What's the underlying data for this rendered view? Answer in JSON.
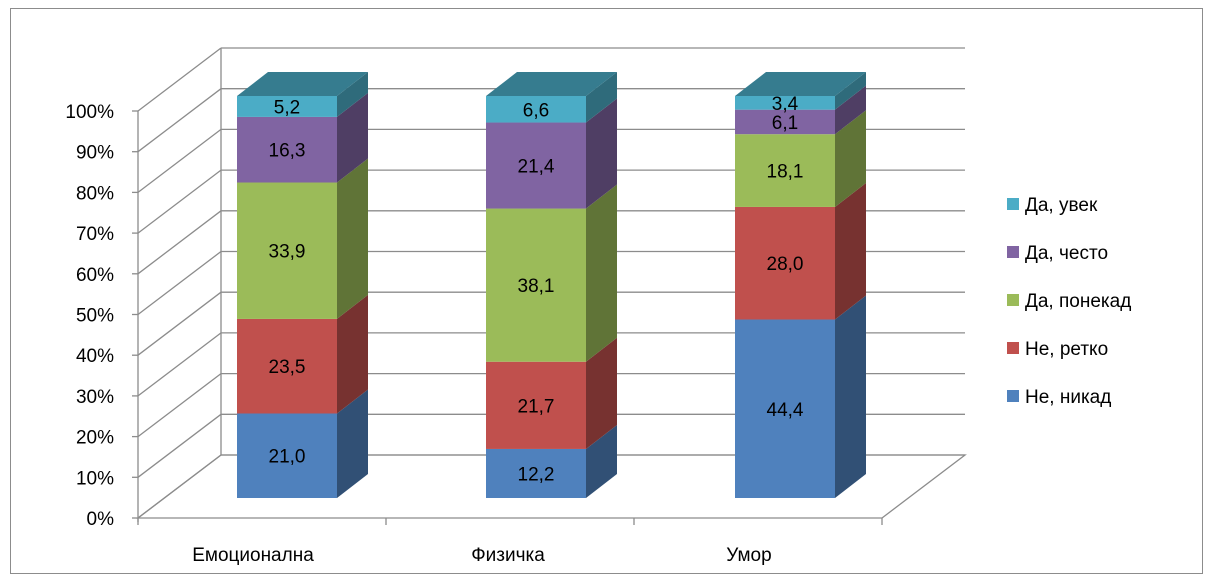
{
  "chart_data": {
    "type": "bar",
    "stacked": true,
    "percent": true,
    "three_d": true,
    "categories": [
      "Емоционална",
      "Физичка",
      "Умор"
    ],
    "series": [
      {
        "name": "Не, никад",
        "values": [
          21.0,
          12.2,
          44.4
        ],
        "labels": [
          "21,0",
          "12,2",
          "44,4"
        ],
        "color": "#4f81bd"
      },
      {
        "name": "Не, ретко",
        "values": [
          23.5,
          21.7,
          28.0
        ],
        "labels": [
          "23,5",
          "21,7",
          "28,0"
        ],
        "color": "#c0504d"
      },
      {
        "name": "Да, понекад",
        "values": [
          33.9,
          38.1,
          18.1
        ],
        "labels": [
          "33,9",
          "38,1",
          "18,1"
        ],
        "color": "#9bbb59"
      },
      {
        "name": "Да, често",
        "values": [
          16.3,
          21.4,
          6.1
        ],
        "labels": [
          "16,3",
          "21,4",
          "6,1"
        ],
        "color": "#8064a2"
      },
      {
        "name": "Да, увек",
        "values": [
          5.2,
          6.6,
          3.4
        ],
        "labels": [
          "5,2",
          "6,6",
          "3,4"
        ],
        "color": "#4bacc6"
      }
    ],
    "y_ticks": [
      "0%",
      "10%",
      "20%",
      "30%",
      "40%",
      "50%",
      "60%",
      "70%",
      "80%",
      "90%",
      "100%"
    ],
    "ylim": [
      0,
      100
    ],
    "grid": true,
    "legend_position": "right",
    "title": "",
    "xlabel": "",
    "ylabel": ""
  }
}
